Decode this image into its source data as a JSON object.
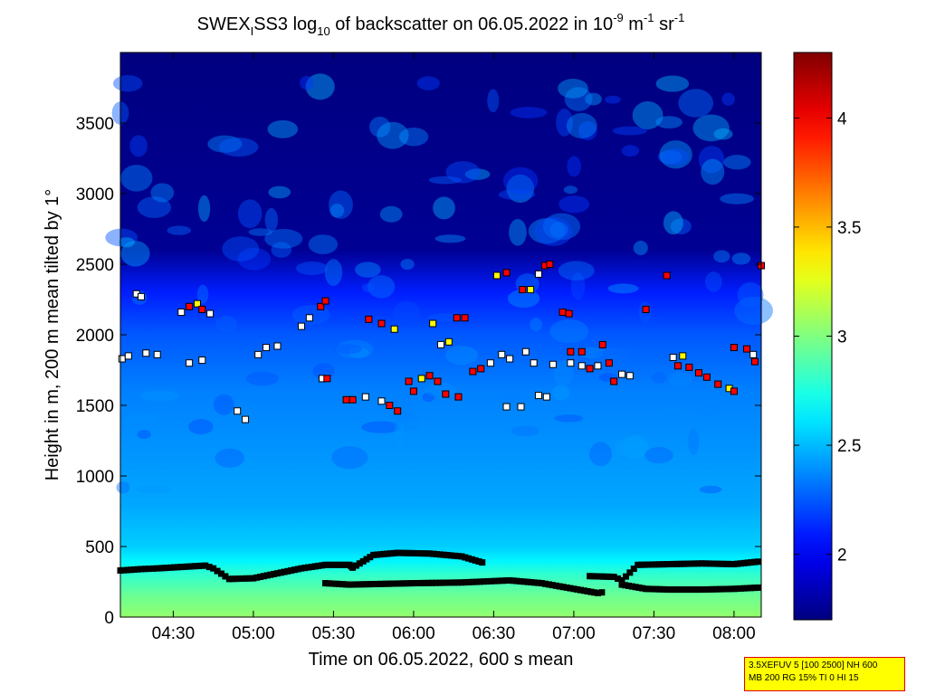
{
  "chart_data": {
    "type": "heatmap",
    "title_parts": {
      "a": "SWEX",
      "a_sub": "I",
      "b": "SS3 log",
      "b_sub": "10",
      "c": " of backscatter on 06.05.2022 in 10",
      "c_sup": "-9",
      "d": " m",
      "d_sup": "-1",
      "e": " sr",
      "e_sup": "-1"
    },
    "xlabel": "Time on 06.05.2022, 600 s mean",
    "ylabel": "Height in m, 200 m mean tilted by 1°",
    "xlim_hours": [
      4.17,
      8.17
    ],
    "ylim": [
      0,
      4000
    ],
    "x_ticks": [
      {
        "value": 4.5,
        "label": "04:30"
      },
      {
        "value": 5.0,
        "label": "05:00"
      },
      {
        "value": 5.5,
        "label": "05:30"
      },
      {
        "value": 6.0,
        "label": "06:00"
      },
      {
        "value": 6.5,
        "label": "06:30"
      },
      {
        "value": 7.0,
        "label": "07:00"
      },
      {
        "value": 7.5,
        "label": "07:30"
      },
      {
        "value": 8.0,
        "label": "08:00"
      }
    ],
    "y_ticks": [
      0,
      500,
      1000,
      1500,
      2000,
      2500,
      3000,
      3500
    ],
    "colorbar": {
      "range": [
        1.7,
        4.3
      ],
      "ticks": [
        2,
        2.5,
        3,
        3.5,
        4
      ],
      "colormap": "jet"
    },
    "field_profile": {
      "heights": [
        0,
        150,
        300,
        400,
        500,
        800,
        1200,
        1600,
        2000,
        2300,
        2600,
        4000
      ],
      "values": [
        3.05,
        2.95,
        2.8,
        2.65,
        2.55,
        2.45,
        2.4,
        2.35,
        2.25,
        2.1,
        1.75,
        1.7
      ]
    },
    "layer_series": [
      {
        "kind": "upper_boundary",
        "x": [
          4.17,
          4.3,
          4.4,
          4.55,
          4.7,
          4.75,
          4.85,
          5.0,
          5.15,
          5.3,
          5.45,
          5.6,
          5.62,
          5.75,
          5.9,
          6.1,
          6.3,
          6.45
        ],
        "y": [
          330,
          340,
          345,
          355,
          365,
          345,
          270,
          275,
          310,
          345,
          370,
          370,
          350,
          440,
          455,
          450,
          430,
          380
        ]
      },
      {
        "kind": "lower_boundary",
        "x": [
          5.45,
          5.6,
          5.8,
          6.0,
          6.3,
          6.6,
          6.8,
          7.0,
          7.15,
          7.2
        ],
        "y": [
          240,
          230,
          235,
          240,
          245,
          260,
          240,
          200,
          170,
          180
        ]
      },
      {
        "kind": "upper_boundary",
        "x": [
          7.1,
          7.25,
          7.3,
          7.4,
          7.6,
          7.8,
          8.0,
          8.17
        ],
        "y": [
          290,
          285,
          260,
          370,
          375,
          380,
          375,
          395
        ]
      },
      {
        "kind": "lower_boundary",
        "x": [
          7.3,
          7.45,
          7.6,
          7.8,
          8.0,
          8.17
        ],
        "y": [
          230,
          200,
          195,
          195,
          200,
          210
        ]
      }
    ],
    "cloud_points": [
      {
        "x": 4.18,
        "y": 1830,
        "c": "white"
      },
      {
        "x": 4.22,
        "y": 1850,
        "c": "white"
      },
      {
        "x": 4.27,
        "y": 2290,
        "c": "white"
      },
      {
        "x": 4.3,
        "y": 2270,
        "c": "white"
      },
      {
        "x": 4.33,
        "y": 1870,
        "c": "white"
      },
      {
        "x": 4.4,
        "y": 1860,
        "c": "white"
      },
      {
        "x": 4.55,
        "y": 2160,
        "c": "white"
      },
      {
        "x": 4.6,
        "y": 2200,
        "c": "red"
      },
      {
        "x": 4.65,
        "y": 2220,
        "c": "yellow"
      },
      {
        "x": 4.68,
        "y": 2180,
        "c": "red"
      },
      {
        "x": 4.73,
        "y": 2150,
        "c": "white"
      },
      {
        "x": 4.6,
        "y": 1800,
        "c": "white"
      },
      {
        "x": 4.68,
        "y": 1820,
        "c": "white"
      },
      {
        "x": 4.9,
        "y": 1460,
        "c": "white"
      },
      {
        "x": 4.95,
        "y": 1400,
        "c": "white"
      },
      {
        "x": 5.03,
        "y": 1860,
        "c": "white"
      },
      {
        "x": 5.08,
        "y": 1910,
        "c": "white"
      },
      {
        "x": 5.15,
        "y": 1920,
        "c": "white"
      },
      {
        "x": 5.3,
        "y": 2060,
        "c": "white"
      },
      {
        "x": 5.35,
        "y": 2120,
        "c": "white"
      },
      {
        "x": 5.42,
        "y": 2200,
        "c": "red"
      },
      {
        "x": 5.45,
        "y": 2240,
        "c": "red"
      },
      {
        "x": 5.43,
        "y": 1690,
        "c": "white"
      },
      {
        "x": 5.46,
        "y": 1690,
        "c": "red"
      },
      {
        "x": 5.58,
        "y": 1540,
        "c": "red"
      },
      {
        "x": 5.62,
        "y": 1540,
        "c": "red"
      },
      {
        "x": 5.7,
        "y": 1560,
        "c": "white"
      },
      {
        "x": 5.8,
        "y": 1530,
        "c": "white"
      },
      {
        "x": 5.85,
        "y": 1500,
        "c": "red"
      },
      {
        "x": 5.9,
        "y": 1460,
        "c": "red"
      },
      {
        "x": 5.72,
        "y": 2110,
        "c": "red"
      },
      {
        "x": 5.8,
        "y": 2080,
        "c": "red"
      },
      {
        "x": 5.88,
        "y": 2040,
        "c": "yellow"
      },
      {
        "x": 5.97,
        "y": 1670,
        "c": "red"
      },
      {
        "x": 6.0,
        "y": 1600,
        "c": "red"
      },
      {
        "x": 6.05,
        "y": 1690,
        "c": "yellow"
      },
      {
        "x": 6.1,
        "y": 1710,
        "c": "red"
      },
      {
        "x": 6.15,
        "y": 1670,
        "c": "red"
      },
      {
        "x": 6.2,
        "y": 1580,
        "c": "red"
      },
      {
        "x": 6.28,
        "y": 1560,
        "c": "red"
      },
      {
        "x": 6.17,
        "y": 1930,
        "c": "white"
      },
      {
        "x": 6.22,
        "y": 1950,
        "c": "yellow"
      },
      {
        "x": 6.12,
        "y": 2080,
        "c": "yellow"
      },
      {
        "x": 6.27,
        "y": 2120,
        "c": "red"
      },
      {
        "x": 6.32,
        "y": 2120,
        "c": "red"
      },
      {
        "x": 6.37,
        "y": 1740,
        "c": "red"
      },
      {
        "x": 6.42,
        "y": 1760,
        "c": "red"
      },
      {
        "x": 6.48,
        "y": 1800,
        "c": "white"
      },
      {
        "x": 6.55,
        "y": 1860,
        "c": "white"
      },
      {
        "x": 6.6,
        "y": 1830,
        "c": "white"
      },
      {
        "x": 6.52,
        "y": 2420,
        "c": "yellow"
      },
      {
        "x": 6.58,
        "y": 2440,
        "c": "red"
      },
      {
        "x": 6.68,
        "y": 2320,
        "c": "red"
      },
      {
        "x": 6.73,
        "y": 2320,
        "c": "yellow"
      },
      {
        "x": 6.7,
        "y": 1880,
        "c": "white"
      },
      {
        "x": 6.75,
        "y": 1800,
        "c": "white"
      },
      {
        "x": 6.78,
        "y": 2430,
        "c": "white"
      },
      {
        "x": 6.82,
        "y": 2490,
        "c": "red"
      },
      {
        "x": 6.85,
        "y": 2500,
        "c": "red"
      },
      {
        "x": 6.58,
        "y": 1490,
        "c": "white"
      },
      {
        "x": 6.67,
        "y": 1490,
        "c": "white"
      },
      {
        "x": 6.78,
        "y": 1570,
        "c": "white"
      },
      {
        "x": 6.83,
        "y": 1560,
        "c": "white"
      },
      {
        "x": 6.87,
        "y": 1790,
        "c": "white"
      },
      {
        "x": 6.93,
        "y": 2160,
        "c": "red"
      },
      {
        "x": 6.97,
        "y": 2150,
        "c": "red"
      },
      {
        "x": 6.98,
        "y": 1880,
        "c": "red"
      },
      {
        "x": 7.05,
        "y": 1880,
        "c": "red"
      },
      {
        "x": 6.98,
        "y": 1800,
        "c": "white"
      },
      {
        "x": 7.05,
        "y": 1780,
        "c": "white"
      },
      {
        "x": 7.1,
        "y": 1760,
        "c": "red"
      },
      {
        "x": 7.15,
        "y": 1780,
        "c": "white"
      },
      {
        "x": 7.18,
        "y": 1930,
        "c": "red"
      },
      {
        "x": 7.22,
        "y": 1800,
        "c": "red"
      },
      {
        "x": 7.25,
        "y": 1670,
        "c": "red"
      },
      {
        "x": 7.3,
        "y": 1720,
        "c": "white"
      },
      {
        "x": 7.35,
        "y": 1710,
        "c": "white"
      },
      {
        "x": 7.45,
        "y": 2180,
        "c": "red"
      },
      {
        "x": 7.58,
        "y": 2420,
        "c": "red"
      },
      {
        "x": 7.62,
        "y": 1840,
        "c": "white"
      },
      {
        "x": 7.68,
        "y": 1850,
        "c": "yellow"
      },
      {
        "x": 7.65,
        "y": 1780,
        "c": "red"
      },
      {
        "x": 7.72,
        "y": 1770,
        "c": "red"
      },
      {
        "x": 7.78,
        "y": 1730,
        "c": "red"
      },
      {
        "x": 7.83,
        "y": 1700,
        "c": "red"
      },
      {
        "x": 7.9,
        "y": 1650,
        "c": "red"
      },
      {
        "x": 7.97,
        "y": 1620,
        "c": "yellow"
      },
      {
        "x": 8.0,
        "y": 1600,
        "c": "red"
      },
      {
        "x": 8.0,
        "y": 1910,
        "c": "red"
      },
      {
        "x": 8.08,
        "y": 1900,
        "c": "red"
      },
      {
        "x": 8.12,
        "y": 1860,
        "c": "white"
      },
      {
        "x": 8.13,
        "y": 1810,
        "c": "red"
      },
      {
        "x": 8.17,
        "y": 2490,
        "c": "red"
      }
    ]
  },
  "info_box": {
    "line1": "3.5XEFUV 5 [100 2500] NH 600",
    "line2": "MB 200 RG 15% TI 0 HI 15",
    "background": "#ffff00",
    "border": "#e00000"
  }
}
